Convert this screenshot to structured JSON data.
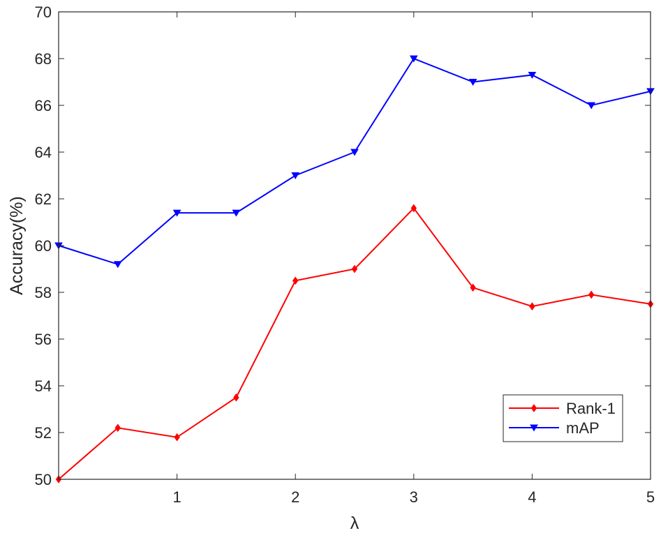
{
  "chart_data": {
    "type": "line",
    "title": "",
    "xlabel": "λ",
    "ylabel": "Accuracy(%)",
    "xlim": [
      0,
      5
    ],
    "ylim": [
      50,
      70
    ],
    "xticks": [
      1,
      2,
      3,
      4,
      5
    ],
    "yticks": [
      50,
      52,
      54,
      56,
      58,
      60,
      62,
      64,
      66,
      68,
      70
    ],
    "grid": false,
    "legend_position": "bottom-right",
    "x": [
      0,
      0.5,
      1,
      1.5,
      2,
      2.5,
      3,
      3.5,
      4,
      4.5,
      5
    ],
    "series": [
      {
        "name": "Rank-1",
        "color": "#ff0000",
        "marker": "diamond",
        "values": [
          50.0,
          52.2,
          51.8,
          53.5,
          58.5,
          59.0,
          61.6,
          58.2,
          57.4,
          57.9,
          57.5
        ]
      },
      {
        "name": "mAP",
        "color": "#0000ff",
        "marker": "triangle-down",
        "values": [
          60.0,
          59.2,
          61.4,
          61.4,
          63.0,
          64.0,
          68.0,
          67.0,
          67.3,
          66.0,
          66.6
        ]
      }
    ]
  }
}
